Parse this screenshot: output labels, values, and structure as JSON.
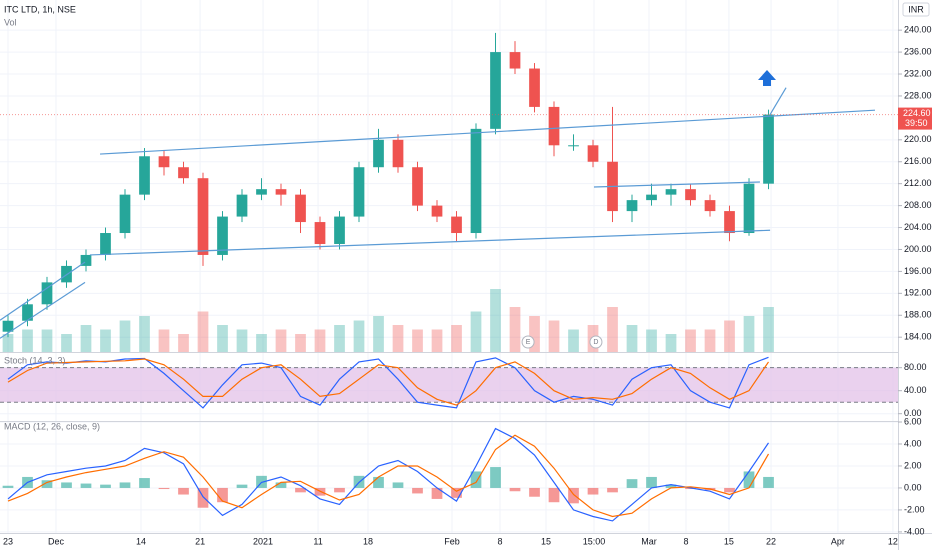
{
  "chart_data": {
    "type": "candlestick",
    "title": "ITC LTD, 1h, NSE",
    "currency": "INR",
    "price_label": {
      "value": 224.6,
      "label": "224.60"
    },
    "countdown": "39:50",
    "xlim": [
      -0.41,
      45.64
    ],
    "xticks": [
      {
        "value": 0,
        "label": "23"
      },
      {
        "value": 2.46,
        "label": "Dec"
      },
      {
        "value": 6.82,
        "label": "14"
      },
      {
        "value": 9.85,
        "label": "21"
      },
      {
        "value": 13.08,
        "label": "2021"
      },
      {
        "value": 15.9,
        "label": "11"
      },
      {
        "value": 18.46,
        "label": "18"
      },
      {
        "value": 22.77,
        "label": "Feb"
      },
      {
        "value": 25.23,
        "label": "8"
      },
      {
        "value": 27.59,
        "label": "15"
      },
      {
        "value": 30.05,
        "label": "15:00"
      },
      {
        "value": 32.87,
        "label": "Mar"
      },
      {
        "value": 34.77,
        "label": "8"
      },
      {
        "value": 36.97,
        "label": "15"
      },
      {
        "value": 39.13,
        "label": "22"
      },
      {
        "value": 42.56,
        "label": "Apr"
      },
      {
        "value": 45.38,
        "label": "12"
      }
    ],
    "ylim": [
      181.3,
      245.5
    ],
    "yticks": [
      {
        "value": 184,
        "label": "184.00"
      },
      {
        "value": 188,
        "label": "188.00"
      },
      {
        "value": 192,
        "label": "192.00"
      },
      {
        "value": 196,
        "label": "196.00"
      },
      {
        "value": 200,
        "label": "200.00"
      },
      {
        "value": 204,
        "label": "204.00"
      },
      {
        "value": 208,
        "label": "208.00"
      },
      {
        "value": 212,
        "label": "212.00"
      },
      {
        "value": 216,
        "label": "216.00"
      },
      {
        "value": 220,
        "label": "220.00"
      },
      {
        "value": 228,
        "label": "228.00"
      },
      {
        "value": 232,
        "label": "232.00"
      },
      {
        "value": 236,
        "label": "236.00"
      },
      {
        "value": 240,
        "label": "240.00"
      }
    ],
    "up_color": "#26a69a",
    "down_color": "#ef5350",
    "series": [
      {
        "name": "ITC LTD",
        "values": [
          [
            185,
            188,
            184,
            187
          ],
          [
            187,
            191,
            186,
            190
          ],
          [
            190,
            195,
            189,
            194
          ],
          [
            194,
            198,
            193,
            197
          ],
          [
            197,
            200,
            196,
            199
          ],
          [
            199,
            204,
            198,
            203
          ],
          [
            203,
            211,
            202,
            210
          ],
          [
            210,
            218.5,
            209,
            217
          ],
          [
            217,
            218,
            213.5,
            215
          ],
          [
            215,
            216,
            212,
            213
          ],
          [
            213,
            214,
            197,
            199
          ],
          [
            199,
            207,
            198,
            206
          ],
          [
            206,
            211,
            205,
            210
          ],
          [
            210,
            213,
            209,
            211
          ],
          [
            211,
            212,
            208,
            210
          ],
          [
            210,
            211,
            203,
            205
          ],
          [
            205,
            206,
            200,
            201
          ],
          [
            201,
            207,
            200,
            206
          ],
          [
            206,
            216,
            205,
            215
          ],
          [
            215,
            222,
            214,
            220
          ],
          [
            220,
            221,
            214,
            215
          ],
          [
            215,
            216,
            207,
            208
          ],
          [
            208,
            209,
            205,
            206
          ],
          [
            206,
            207,
            201.5,
            203
          ],
          [
            203,
            223,
            202,
            222
          ],
          [
            222,
            239.5,
            221,
            236
          ],
          [
            236,
            238,
            232,
            233
          ],
          [
            233,
            234,
            225,
            226
          ],
          [
            226,
            227,
            217,
            219
          ],
          [
            219,
            221,
            218,
            219
          ],
          [
            219,
            220,
            215,
            216
          ],
          [
            216,
            226,
            205,
            207
          ],
          [
            207,
            210,
            205,
            209
          ],
          [
            209,
            212,
            208,
            210
          ],
          [
            210,
            212,
            208,
            211
          ],
          [
            211,
            212,
            208,
            209
          ],
          [
            209,
            210,
            206,
            207
          ],
          [
            207,
            208,
            201.5,
            203
          ],
          [
            203,
            213,
            202.5,
            212
          ],
          [
            212,
            225.5,
            211,
            224.6
          ]
        ]
      }
    ],
    "drawings": [
      {
        "from": [
          4.72,
          217.4
        ],
        "to": [
          44.46,
          225.4
        ],
        "color": "#5b9bd5"
      },
      {
        "from": [
          4.2,
          199
        ],
        "to": [
          39.08,
          203.5
        ],
        "color": "#5b9bd5"
      },
      {
        "from": [
          -0.41,
          187.1
        ],
        "to": [
          3.95,
          197.7
        ],
        "color": "#5b9bd5"
      },
      {
        "from": [
          -0.41,
          183.8
        ],
        "to": [
          3.95,
          194
        ],
        "color": "#5b9bd5"
      },
      {
        "from": [
          30.05,
          211.4
        ],
        "to": [
          38.56,
          212.3
        ],
        "color": "#5b9bd5"
      },
      {
        "from": [
          39.08,
          224.6
        ],
        "to": [
          39.9,
          229.5
        ],
        "color": "#5b9bd5"
      }
    ],
    "events": [
      {
        "label": "E",
        "x": 26.67
      },
      {
        "label": "D",
        "x": 30.15
      }
    ],
    "volume": {
      "name": "Vol",
      "ylim": [
        0,
        16
      ],
      "values": [
        4,
        5,
        5,
        4,
        6,
        5,
        7,
        8,
        5,
        4,
        9,
        6,
        5,
        4,
        5,
        4,
        5,
        6,
        7,
        8,
        6,
        5,
        5,
        6,
        9,
        14,
        10,
        8,
        7,
        5,
        6,
        10,
        6,
        5,
        4,
        5,
        5,
        7,
        8,
        10
      ]
    },
    "stoch": {
      "name": "Stoch (14, 3, 3)",
      "ylim": [
        -12.7,
        105.5
      ],
      "bands": [
        20,
        80
      ],
      "band_color": "#e1bee7",
      "yticks": [
        {
          "value": 80,
          "label": "80.00"
        },
        {
          "value": 40,
          "label": "40.00"
        },
        {
          "value": 0,
          "label": "0.00"
        }
      ],
      "series": [
        {
          "color": "#2962ff",
          "values": [
            60,
            85,
            90,
            88,
            92,
            90,
            95,
            96,
            70,
            40,
            10,
            50,
            85,
            88,
            80,
            30,
            15,
            60,
            90,
            95,
            60,
            20,
            15,
            10,
            90,
            97,
            80,
            40,
            20,
            30,
            25,
            15,
            60,
            80,
            85,
            40,
            20,
            10,
            85,
            98
          ]
        },
        {
          "color": "#ff6d00",
          "values": [
            55,
            75,
            88,
            89,
            90,
            91,
            92,
            95,
            85,
            60,
            30,
            30,
            60,
            80,
            85,
            60,
            30,
            35,
            60,
            85,
            80,
            45,
            25,
            15,
            40,
            80,
            90,
            70,
            40,
            25,
            28,
            25,
            35,
            60,
            80,
            70,
            45,
            25,
            40,
            90
          ]
        }
      ]
    },
    "macd": {
      "name": "MACD (12, 26, close, 9)",
      "ylim": [
        -4.1,
        6.0
      ],
      "yticks": [
        {
          "value": 6,
          "label": "6.00"
        },
        {
          "value": 4,
          "label": "4.00"
        },
        {
          "value": 2,
          "label": "2.00"
        },
        {
          "value": 0,
          "label": "0.00"
        },
        {
          "value": -2,
          "label": "-2.00"
        },
        {
          "value": -4,
          "label": "-4.00"
        }
      ],
      "series": [
        {
          "color": "#2962ff",
          "values": [
            -1,
            0.5,
            1.2,
            1.5,
            1.8,
            2.0,
            2.5,
            3.6,
            3.2,
            2.2,
            -0.8,
            -2.5,
            -1.5,
            0.5,
            1.0,
            0.2,
            -1.0,
            -1.5,
            0.5,
            2.0,
            2.5,
            1.5,
            0,
            -1.2,
            2.0,
            5.4,
            4.5,
            3.0,
            0.5,
            -2.0,
            -2.6,
            -3.0,
            -1.5,
            0,
            0.3,
            0,
            -0.3,
            -1.0,
            1.5,
            4.1
          ]
        },
        {
          "color": "#ff6d00",
          "values": [
            -1.2,
            -0.5,
            0.5,
            1.0,
            1.4,
            1.7,
            2.0,
            2.7,
            3.3,
            2.8,
            1.0,
            -1.2,
            -1.8,
            -0.6,
            0.5,
            0.6,
            -0.3,
            -1.1,
            -0.6,
            1.0,
            2.0,
            2.0,
            1.0,
            -0.3,
            0.5,
            3.5,
            4.8,
            3.8,
            1.8,
            -0.6,
            -2.0,
            -2.6,
            -2.3,
            -1.0,
            0,
            0.1,
            -0.1,
            -0.6,
            0,
            3.1
          ]
        }
      ],
      "histogram": [
        0.2,
        1.0,
        0.7,
        0.5,
        0.4,
        0.3,
        0.5,
        0.9,
        -0.1,
        -0.6,
        -1.8,
        -1.3,
        0.3,
        1.1,
        0.5,
        -0.4,
        -0.7,
        -0.4,
        1.1,
        1.0,
        0.5,
        -0.5,
        -1.0,
        -0.9,
        1.5,
        1.9,
        -0.3,
        -0.8,
        -1.3,
        -1.4,
        -0.6,
        -0.4,
        0.8,
        1.0,
        0.3,
        -0.1,
        -0.2,
        -0.4,
        1.5,
        1.0
      ]
    }
  }
}
